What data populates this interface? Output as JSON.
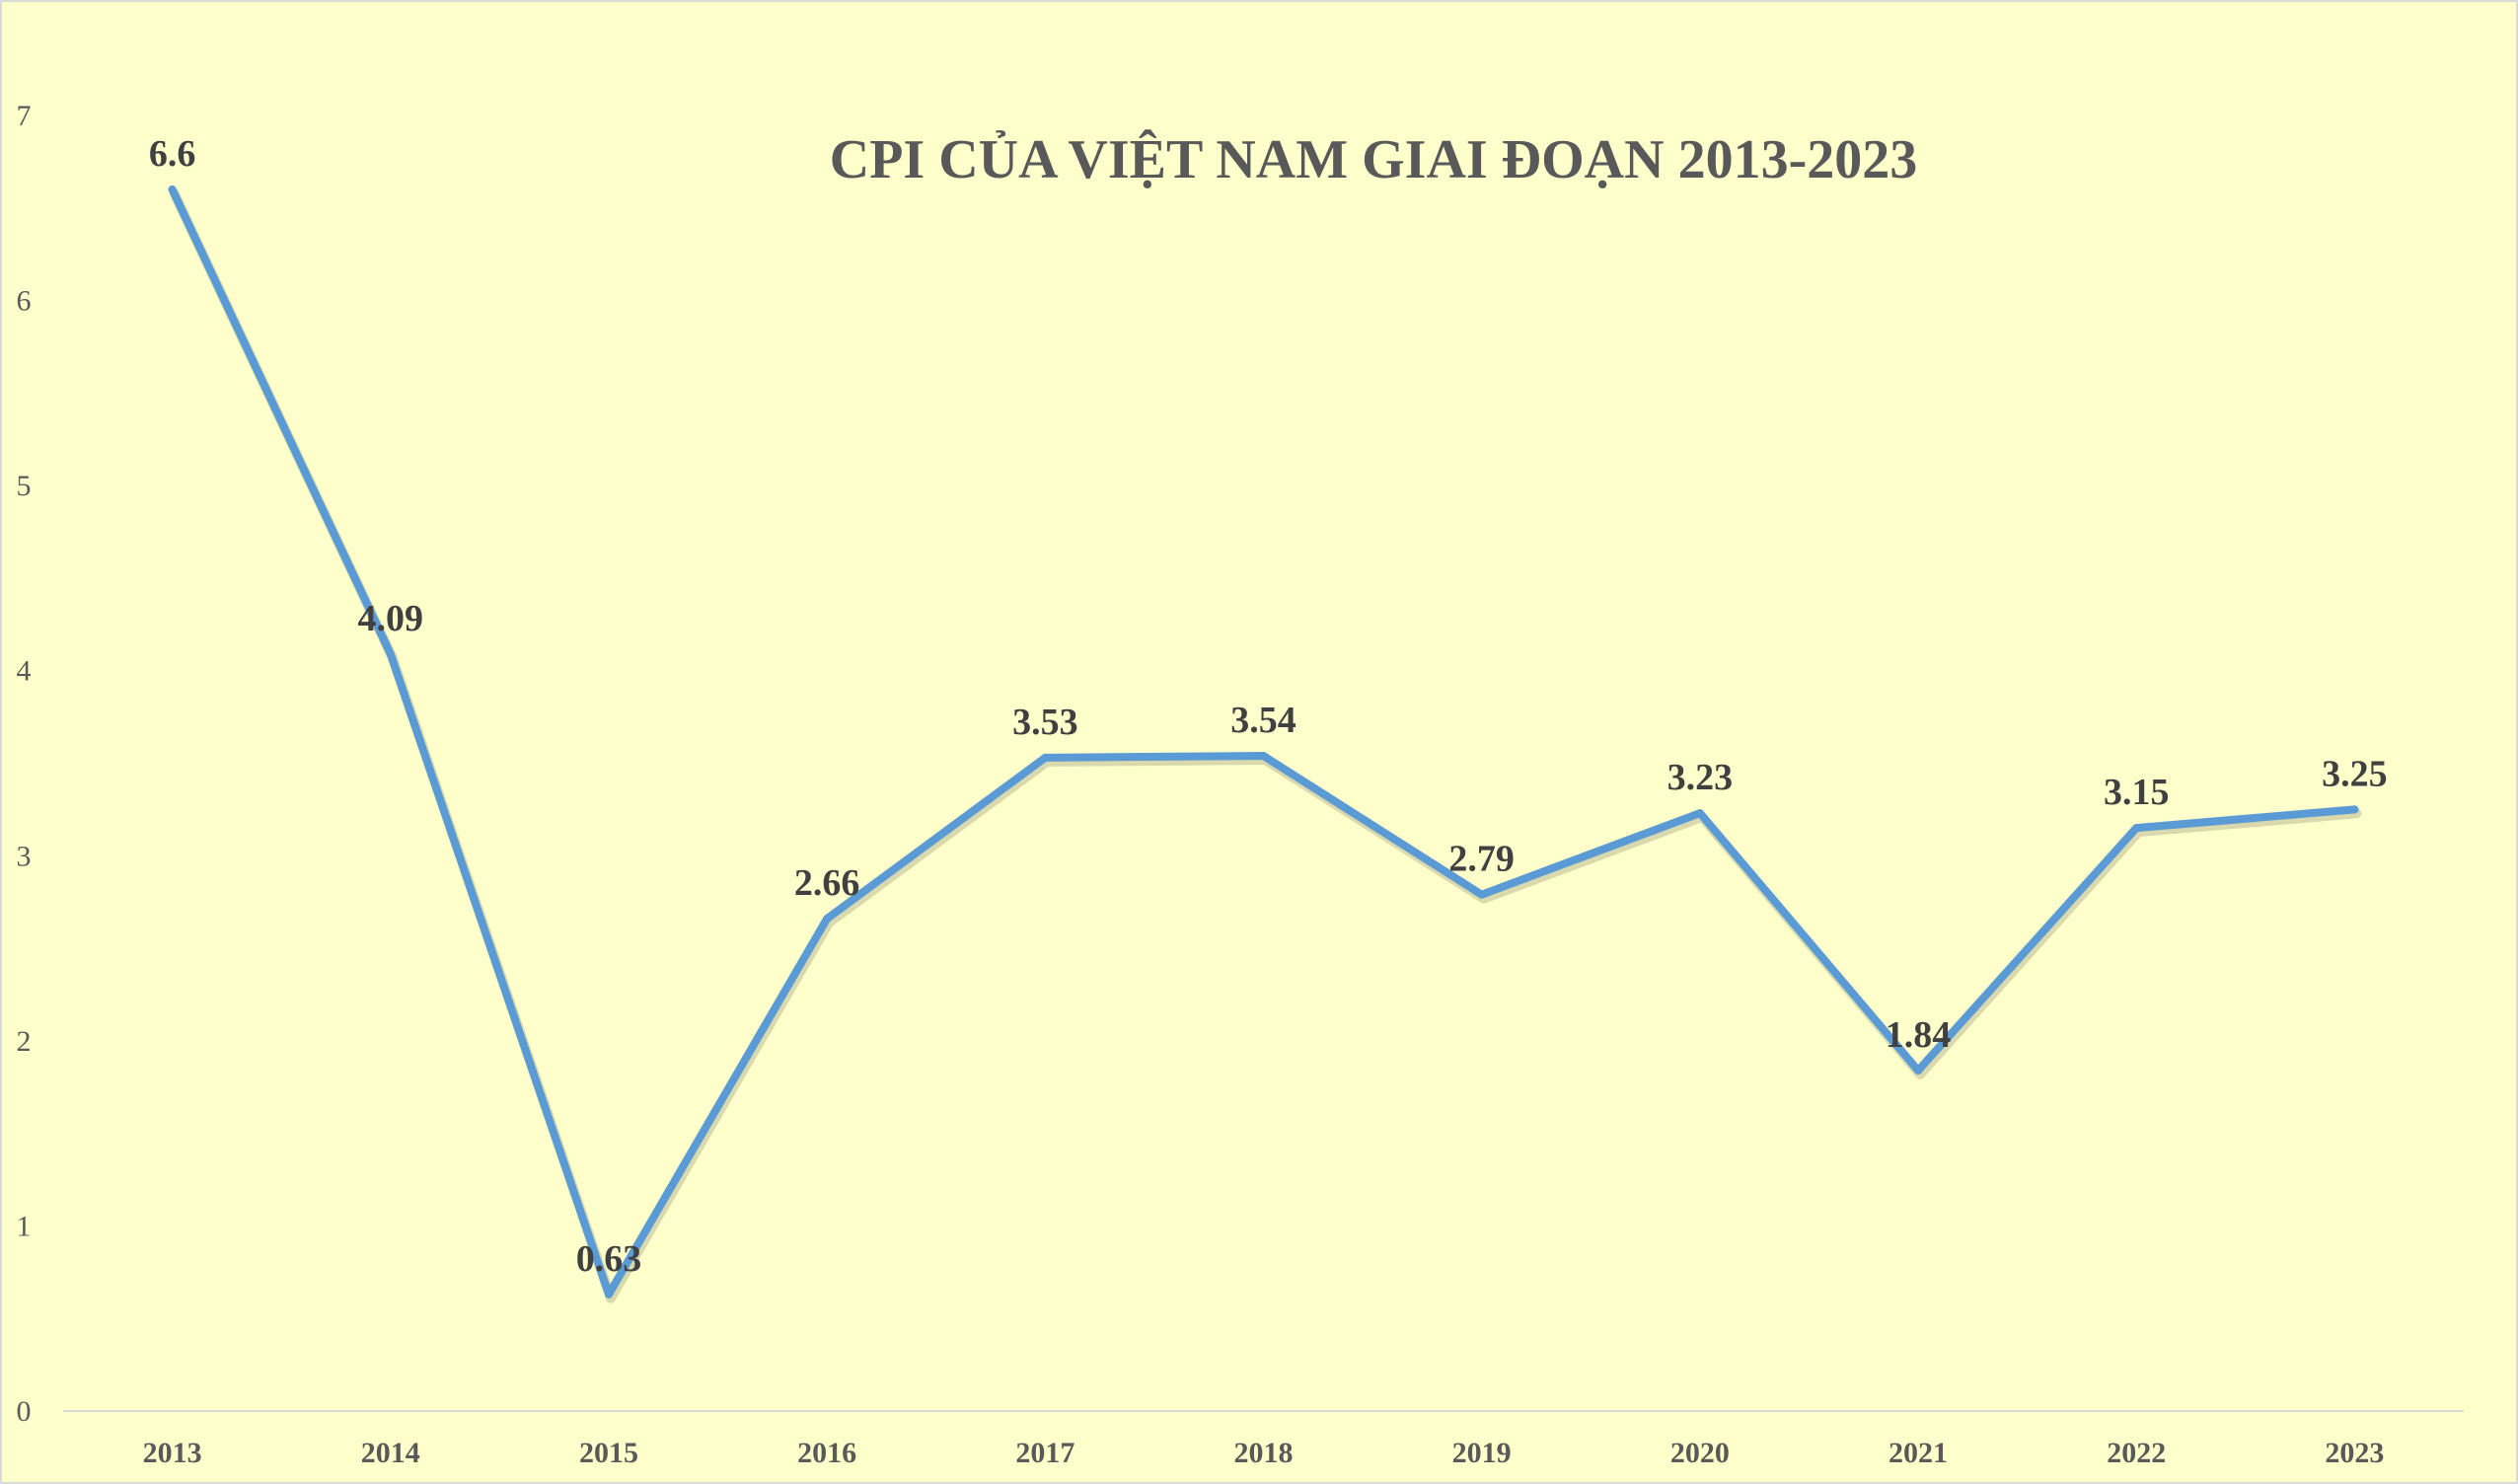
{
  "chart_data": {
    "type": "line",
    "title": "CPI CỦA VIỆT NAM GIAI ĐOẠN 2013-2023",
    "xlabel": "",
    "ylabel": "",
    "categories": [
      "2013",
      "2014",
      "2015",
      "2016",
      "2017",
      "2018",
      "2019",
      "2020",
      "2021",
      "2022",
      "2023"
    ],
    "series": [
      {
        "values": [
          6.6,
          4.09,
          0.63,
          2.66,
          3.53,
          3.54,
          2.79,
          3.23,
          1.84,
          3.15,
          3.25
        ],
        "labels": [
          "6.6",
          "4.09",
          "0.63",
          "2.66",
          "3.53",
          "3.54",
          "2.79",
          "3.23",
          "1.84",
          "3.15",
          "3.25"
        ],
        "color": "#5B9BD5"
      }
    ],
    "ylim": [
      0,
      7
    ],
    "yticks": [
      "0",
      "1",
      "2",
      "3",
      "4",
      "5",
      "6",
      "7"
    ],
    "grid": false,
    "legend": "none"
  }
}
